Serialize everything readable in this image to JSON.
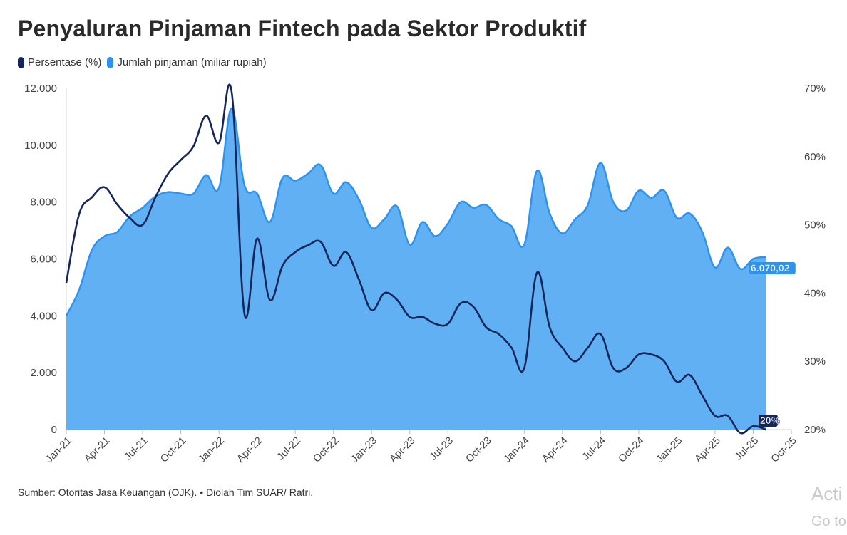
{
  "chart_data": {
    "type": "area+line",
    "title": "Penyaluran Pinjaman Fintech pada Sektor Produktif",
    "legend": [
      {
        "name": "Persentase (%)",
        "color": "#15275a"
      },
      {
        "name": "Jumlah pinjaman (miliar rupiah)",
        "color": "#2e93ea"
      }
    ],
    "x_ticks": [
      "Jan-21",
      "Apr-21",
      "Jul-21",
      "Oct-21",
      "Jan-22",
      "Apr-22",
      "Jul-22",
      "Oct-22",
      "Jan-23",
      "Apr-23",
      "Jul-23",
      "Oct-23",
      "Jan-24",
      "Apr-24",
      "Jul-24",
      "Oct-24",
      "Jan-25",
      "Apr-25",
      "Jul-25",
      "Oct-25"
    ],
    "y_left": {
      "ticks": [
        "0",
        "2.000",
        "4.000",
        "6.000",
        "8.000",
        "10.000",
        "12.000"
      ],
      "min": 0,
      "max": 12000
    },
    "y_right": {
      "ticks": [
        "20%",
        "30%",
        "40%",
        "50%",
        "60%",
        "70%"
      ],
      "min": 20,
      "max": 70
    },
    "series": [
      {
        "name": "Jumlah pinjaman (miliar rupiah)",
        "axis": "left",
        "type": "area",
        "color": "#62b0f4",
        "edge_color": "#2e93ea",
        "values": [
          4000,
          4900,
          6300,
          6800,
          6950,
          7500,
          7800,
          8200,
          8350,
          8300,
          8300,
          8950,
          8500,
          11300,
          8600,
          8300,
          7300,
          8850,
          8750,
          9000,
          9300,
          8300,
          8700,
          8100,
          7100,
          7400,
          7850,
          6500,
          7300,
          6800,
          7250,
          8000,
          7800,
          7900,
          7400,
          7150,
          6500,
          9100,
          7600,
          6900,
          7400,
          7900,
          9380,
          8000,
          7700,
          8400,
          8150,
          8400,
          7450,
          7600,
          6950,
          5700,
          6400,
          5650,
          6000,
          6070.02
        ]
      },
      {
        "name": "Persentase (%)",
        "axis": "right",
        "type": "line",
        "color": "#15275a",
        "values": [
          41.5,
          51.5,
          54,
          55.5,
          53,
          51,
          50,
          54,
          57.5,
          59.5,
          61.5,
          66,
          62,
          69.5,
          37,
          48,
          39,
          44,
          46,
          47,
          47.5,
          44,
          46,
          42,
          37.5,
          40,
          39,
          36.5,
          36.5,
          35.5,
          35.5,
          38.5,
          38,
          35,
          34,
          32,
          29,
          43,
          35,
          32,
          30,
          32,
          34,
          29,
          29,
          31,
          31,
          30,
          27,
          28,
          25,
          22,
          22,
          19.5,
          20.5,
          20
        ]
      }
    ],
    "end_labels": {
      "area": "6.070,02",
      "line": "20%"
    },
    "source": "Sumber: Otoritas Jasa Keuangan (OJK). • Diolah Tim SUAR/ Ratri."
  },
  "watermark": {
    "line1": "Acti",
    "line2": "Go to"
  }
}
